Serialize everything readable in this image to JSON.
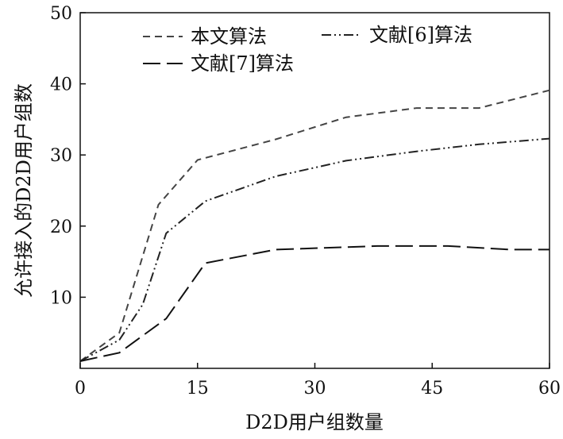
{
  "chart_data": {
    "type": "line",
    "title": "",
    "xlabel": "D2D用户组数量",
    "ylabel": "允许接入的D2D用户组数",
    "xlim": [
      0,
      60
    ],
    "ylim": [
      0,
      50
    ],
    "xticks": [
      "0",
      "15",
      "30",
      "45",
      "60"
    ],
    "yticks": [
      "10",
      "20",
      "30",
      "40",
      "50"
    ],
    "legend_position": "top",
    "grid": false,
    "series": [
      {
        "name": "本文算法",
        "color": "#444444",
        "dash": "dashed",
        "x": [
          0,
          5,
          10,
          15,
          25,
          34,
          43,
          51,
          60
        ],
        "y": [
          1,
          5,
          23,
          29.3,
          32.2,
          35.3,
          36.6,
          36.6,
          39.1
        ]
      },
      {
        "name": "文献[6]算法",
        "color": "#222222",
        "dash": "dash-dot-dot",
        "x": [
          0,
          5,
          8,
          11,
          16,
          25,
          34,
          43,
          51,
          60
        ],
        "y": [
          1,
          4,
          9,
          19,
          23.5,
          27,
          29.2,
          30.5,
          31.5,
          32.3
        ]
      },
      {
        "name": "文献[7]算法",
        "color": "#111111",
        "dash": "long-dash",
        "x": [
          0,
          5,
          11,
          16,
          25,
          38,
          47,
          55,
          60
        ],
        "y": [
          1,
          2.2,
          7,
          14.8,
          16.7,
          17.2,
          17.2,
          16.7,
          16.7
        ]
      }
    ]
  }
}
